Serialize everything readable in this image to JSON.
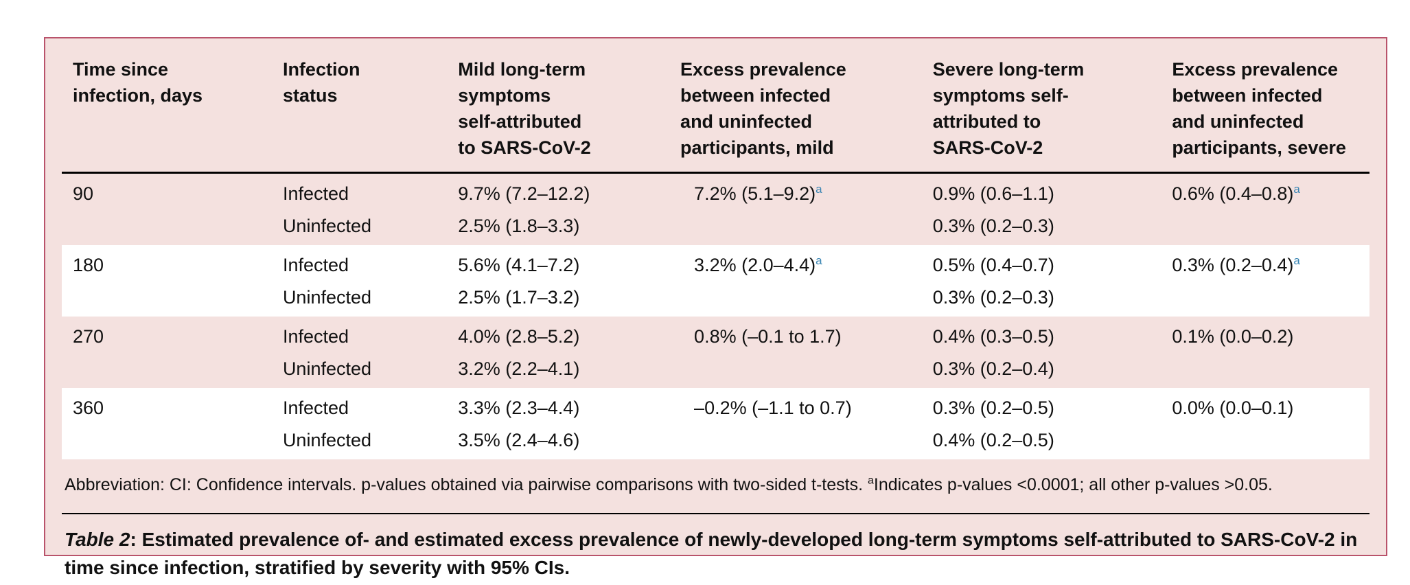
{
  "colors": {
    "panel_background": "#f4e1df",
    "panel_border": "#b9536b",
    "footnote_marker_accent": "#3a85b3",
    "stripe_white": "#ffffff",
    "text": "#111111"
  },
  "table": {
    "headers": [
      "Time since\ninfection, days",
      "Infection\nstatus",
      "Mild long-term\nsymptoms\nself-attributed\nto SARS-CoV-2",
      "Excess prevalence\nbetween infected\nand uninfected\nparticipants, mild",
      "Severe long-term\nsymptoms self-\nattributed to\nSARS-CoV-2",
      "Excess prevalence\nbetween infected\nand uninfected\nparticipants, severe"
    ],
    "groups": [
      {
        "time": "90",
        "rows": [
          {
            "status": "Infected",
            "mild": "9.7% (7.2–12.2)",
            "excess_mild": "7.2% (5.1–9.2)",
            "excess_mild_sup": "a",
            "severe": "0.9% (0.6–1.1)",
            "excess_severe": "0.6% (0.4–0.8)",
            "excess_severe_sup": "a"
          },
          {
            "status": "Uninfected",
            "mild": "2.5% (1.8–3.3)",
            "severe": "0.3% (0.2–0.3)"
          }
        ]
      },
      {
        "time": "180",
        "rows": [
          {
            "status": "Infected",
            "mild": "5.6% (4.1–7.2)",
            "excess_mild": "3.2% (2.0–4.4)",
            "excess_mild_sup": "a",
            "severe": "0.5% (0.4–0.7)",
            "excess_severe": "0.3% (0.2–0.4)",
            "excess_severe_sup": "a"
          },
          {
            "status": "Uninfected",
            "mild": "2.5% (1.7–3.2)",
            "severe": "0.3% (0.2–0.3)"
          }
        ]
      },
      {
        "time": "270",
        "rows": [
          {
            "status": "Infected",
            "mild": "4.0% (2.8–5.2)",
            "excess_mild": "0.8% (–0.1 to 1.7)",
            "severe": "0.4% (0.3–0.5)",
            "excess_severe": "0.1% (0.0–0.2)"
          },
          {
            "status": "Uninfected",
            "mild": "3.2% (2.2–4.1)",
            "severe": "0.3% (0.2–0.4)"
          }
        ]
      },
      {
        "time": "360",
        "rows": [
          {
            "status": "Infected",
            "mild": "3.3% (2.3–4.4)",
            "excess_mild": "–0.2% (–1.1 to 0.7)",
            "severe": "0.3% (0.2–0.5)",
            "excess_severe": "0.0% (0.0–0.1)"
          },
          {
            "status": "Uninfected",
            "mild": "3.5% (2.4–4.6)",
            "severe": "0.4% (0.2–0.5)"
          }
        ]
      }
    ]
  },
  "footnote": {
    "part1": "Abbreviation: CI: Confidence intervals. p-values obtained via pairwise comparisons with two-sided t-tests. ",
    "sup": "a",
    "part2": "Indicates p-values <0.0001; all other p-values >0.05."
  },
  "caption": {
    "label": "Table 2",
    "separator": ": ",
    "text": "Estimated prevalence of- and estimated excess prevalence of newly-developed long-term symptoms self-attributed to SARS-CoV-2 in time since infection, stratified by severity with 95% CIs."
  }
}
